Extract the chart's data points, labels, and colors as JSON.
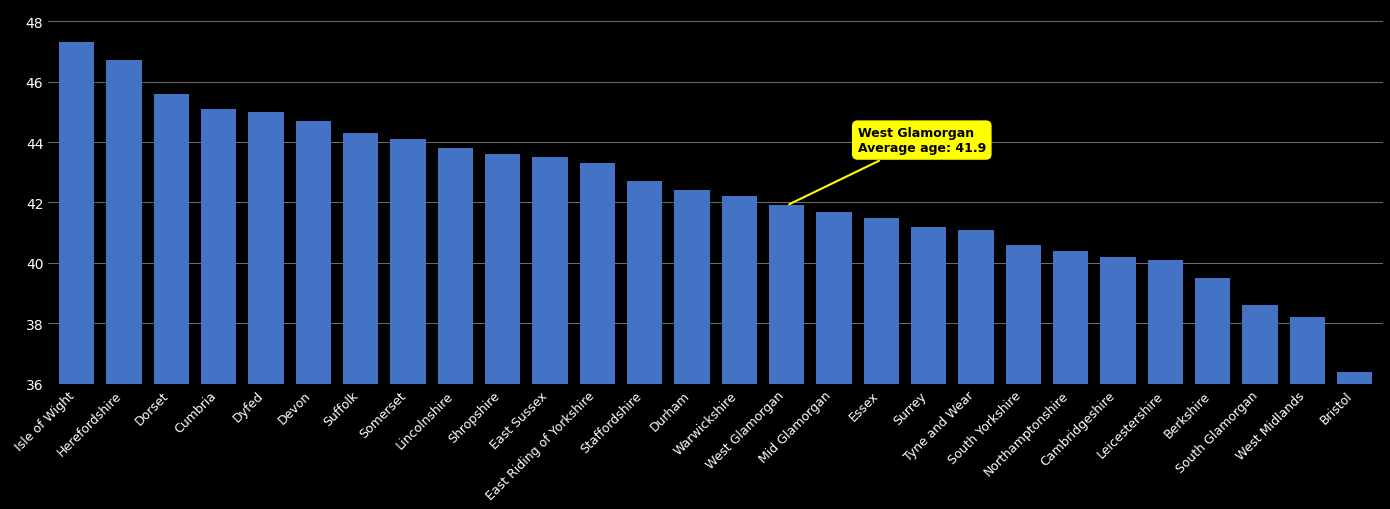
{
  "categories": [
    "Isle of Wight",
    "Herefordshire",
    "Dorset",
    "Cumbria",
    "Dyfed",
    "Devon",
    "Suffolk",
    "Somerset",
    "Lincolnshire",
    "Shropshire",
    "East Sussex",
    "East Riding of Yorkshire",
    "Staffordshire",
    "Durham",
    "Warwickshire",
    "West Glamorgan",
    "Mid Glamorgan",
    "Essex",
    "Surrey",
    "Tyne and Wear",
    "South Yorkshire",
    "Northamptonshire",
    "Cambridgeshire",
    "Leicestershire",
    "Berkshire",
    "South Glamorgan",
    "West Midlands",
    "Bristol"
  ],
  "values": [
    47.3,
    46.7,
    45.6,
    45.1,
    45.0,
    44.7,
    44.3,
    44.1,
    43.8,
    43.6,
    43.5,
    43.3,
    42.7,
    42.4,
    42.2,
    41.9,
    41.7,
    41.5,
    41.2,
    41.1,
    40.6,
    40.4,
    40.2,
    40.1,
    39.5,
    38.6,
    38.2,
    36.4
  ],
  "highlight_index": 15,
  "highlight_label": "West Glamorgan",
  "highlight_value": 41.9,
  "bar_color": "#4472C4",
  "highlight_bar_color": "#4472C4",
  "annotation_bg_color": "#FFFF00",
  "annotation_text_color": "#000000",
  "background_color": "#000000",
  "grid_color": "#FFFFFF",
  "text_color": "#FFFFFF",
  "ylim": [
    36,
    48.5
  ],
  "yticks": [
    36,
    38,
    40,
    42,
    44,
    46,
    48
  ]
}
